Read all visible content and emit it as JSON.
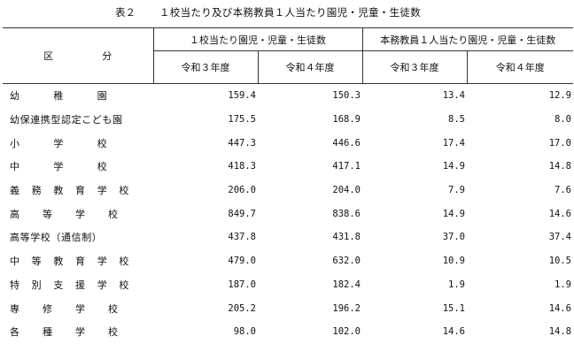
{
  "title": {
    "label": "表２",
    "text": "１校当たり及び本務教員１人当たり園児・児童・生徒数"
  },
  "header": {
    "row_header": "区　分",
    "group1": "１校当たり園児・児童・生徒数",
    "group2": "本務教員１人当たり園児・児童・生徒数",
    "sub": [
      "令和３年度",
      "令和４年度",
      "令和３年度",
      "令和４年度"
    ]
  },
  "rows": [
    {
      "name": [
        "幼",
        "稚",
        "園"
      ],
      "values": [
        "159.4",
        "150.3",
        "13.4",
        "12.9"
      ]
    },
    {
      "name": [
        "幼保連携型認定こども園"
      ],
      "values": [
        "175.5",
        "168.9",
        "8.5",
        "8.0"
      ]
    },
    {
      "name": [
        "小",
        "学",
        "校"
      ],
      "values": [
        "447.3",
        "446.6",
        "17.4",
        "17.0"
      ]
    },
    {
      "name": [
        "中",
        "学",
        "校"
      ],
      "values": [
        "418.3",
        "417.1",
        "14.9",
        "14.8"
      ]
    },
    {
      "name": [
        "義",
        "務",
        "教",
        "育",
        "学",
        "校"
      ],
      "values": [
        "206.0",
        "204.0",
        "7.9",
        "7.6"
      ]
    },
    {
      "name": [
        "高",
        "等",
        "学",
        "校"
      ],
      "values": [
        "849.7",
        "838.6",
        "14.9",
        "14.6"
      ]
    },
    {
      "name": [
        "高等学校（通信制）"
      ],
      "values": [
        "437.8",
        "431.8",
        "37.0",
        "37.4"
      ]
    },
    {
      "name": [
        "中",
        "等",
        "教",
        "育",
        "学",
        "校"
      ],
      "values": [
        "479.0",
        "632.0",
        "10.9",
        "10.5"
      ]
    },
    {
      "name": [
        "特",
        "別",
        "支",
        "援",
        "学",
        "校"
      ],
      "values": [
        "187.0",
        "182.4",
        "1.9",
        "1.9"
      ]
    },
    {
      "name": [
        "専",
        "修",
        "学",
        "校"
      ],
      "values": [
        "205.2",
        "196.2",
        "15.1",
        "14.6"
      ]
    },
    {
      "name": [
        "各",
        "種",
        "学",
        "校"
      ],
      "values": [
        "98.0",
        "102.0",
        "14.6",
        "14.8"
      ]
    }
  ]
}
